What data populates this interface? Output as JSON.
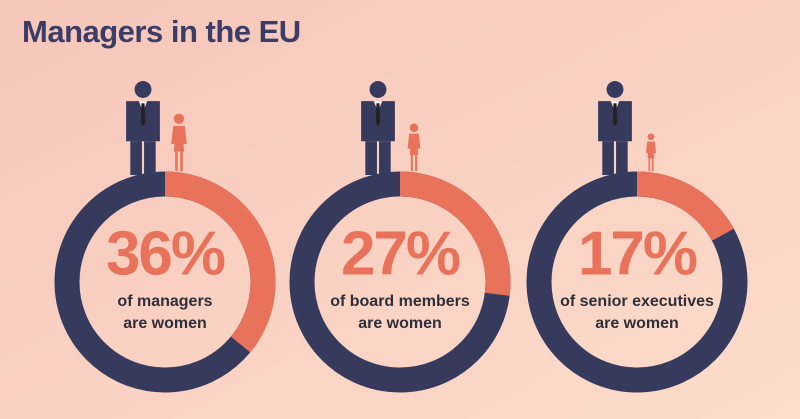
{
  "title": "Managers in the EU",
  "chart_data": [
    {
      "type": "donut",
      "values": [
        36
      ],
      "value_labels": [
        "36%"
      ],
      "caption": [
        "of managers",
        "are women"
      ],
      "color": "#e8735a",
      "track_color": "#363a5c"
    },
    {
      "type": "donut",
      "values": [
        27
      ],
      "value_labels": [
        "27%"
      ],
      "caption": [
        "of board members",
        "are women"
      ],
      "color": "#e8735a",
      "track_color": "#363a5c"
    },
    {
      "type": "donut",
      "values": [
        17
      ],
      "value_labels": [
        "17%"
      ],
      "caption": [
        "of senior executives",
        "are women"
      ],
      "color": "#e8735a",
      "track_color": "#363a5c"
    }
  ]
}
